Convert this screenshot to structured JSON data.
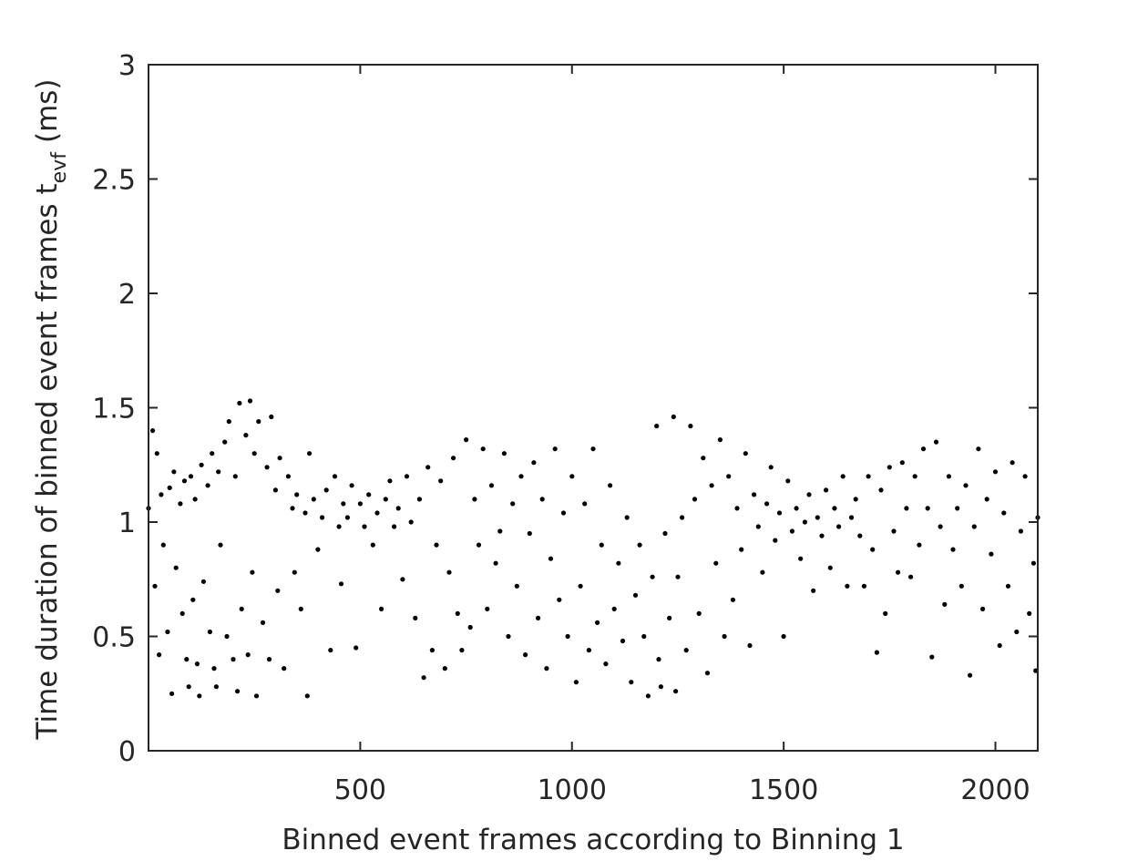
{
  "chart_data": {
    "type": "scatter",
    "title": "",
    "xlabel": "Binned event frames according to Binning 1",
    "ylabel": {
      "main": "Time duration of binned event frames t",
      "subscript": "evf",
      "unit": "(ms)"
    },
    "xlim": [
      0,
      2100
    ],
    "ylim": [
      0,
      3
    ],
    "x_ticks": [
      500,
      1000,
      1500,
      2000
    ],
    "y_ticks": [
      0,
      0.5,
      1,
      1.5,
      2,
      2.5,
      3
    ],
    "x_tick_labels": [
      "500",
      "1000",
      "1500",
      "2000"
    ],
    "y_tick_labels": [
      "0",
      "0.5",
      "1",
      "1.5",
      "2",
      "2.5",
      "3"
    ],
    "grid": false,
    "box": true,
    "marker_color": "#000000",
    "marker": "dot",
    "series": [
      {
        "points": [
          [
            0,
            1.06
          ],
          [
            10,
            1.4
          ],
          [
            15,
            0.72
          ],
          [
            20,
            1.3
          ],
          [
            25,
            0.42
          ],
          [
            30,
            1.12
          ],
          [
            35,
            0.9
          ],
          [
            45,
            0.52
          ],
          [
            50,
            1.15
          ],
          [
            55,
            0.25
          ],
          [
            60,
            1.22
          ],
          [
            65,
            0.8
          ],
          [
            75,
            1.08
          ],
          [
            80,
            0.6
          ],
          [
            85,
            1.18
          ],
          [
            90,
            0.4
          ],
          [
            95,
            0.28
          ],
          [
            100,
            1.2
          ],
          [
            105,
            0.66
          ],
          [
            110,
            1.1
          ],
          [
            115,
            0.38
          ],
          [
            120,
            0.24
          ],
          [
            125,
            1.25
          ],
          [
            130,
            0.74
          ],
          [
            140,
            1.16
          ],
          [
            145,
            0.52
          ],
          [
            150,
            1.3
          ],
          [
            155,
            0.36
          ],
          [
            160,
            0.28
          ],
          [
            165,
            1.22
          ],
          [
            170,
            0.9
          ],
          [
            180,
            1.35
          ],
          [
            185,
            0.5
          ],
          [
            190,
            1.44
          ],
          [
            200,
            0.4
          ],
          [
            205,
            1.2
          ],
          [
            210,
            0.26
          ],
          [
            215,
            1.52
          ],
          [
            220,
            0.62
          ],
          [
            230,
            1.38
          ],
          [
            235,
            0.42
          ],
          [
            240,
            1.53
          ],
          [
            245,
            0.78
          ],
          [
            250,
            1.3
          ],
          [
            255,
            0.24
          ],
          [
            260,
            1.44
          ],
          [
            270,
            0.56
          ],
          [
            280,
            1.24
          ],
          [
            285,
            0.4
          ],
          [
            290,
            1.46
          ],
          [
            300,
            1.14
          ],
          [
            305,
            0.7
          ],
          [
            310,
            1.28
          ],
          [
            320,
            0.36
          ],
          [
            330,
            1.2
          ],
          [
            340,
            1.06
          ],
          [
            345,
            0.78
          ],
          [
            350,
            1.12
          ],
          [
            360,
            0.62
          ],
          [
            370,
            1.04
          ],
          [
            375,
            0.24
          ],
          [
            380,
            1.3
          ],
          [
            390,
            1.1
          ],
          [
            400,
            0.88
          ],
          [
            410,
            1.02
          ],
          [
            420,
            1.14
          ],
          [
            430,
            0.44
          ],
          [
            440,
            1.2
          ],
          [
            450,
            0.98
          ],
          [
            455,
            0.73
          ],
          [
            460,
            1.08
          ],
          [
            470,
            1.02
          ],
          [
            480,
            1.16
          ],
          [
            490,
            0.45
          ],
          [
            500,
            1.08
          ],
          [
            510,
            0.98
          ],
          [
            520,
            1.12
          ],
          [
            530,
            0.9
          ],
          [
            540,
            1.04
          ],
          [
            550,
            0.62
          ],
          [
            560,
            1.1
          ],
          [
            570,
            1.18
          ],
          [
            580,
            0.98
          ],
          [
            590,
            1.06
          ],
          [
            600,
            0.75
          ],
          [
            610,
            1.2
          ],
          [
            620,
            1.0
          ],
          [
            630,
            0.58
          ],
          [
            640,
            1.1
          ],
          [
            650,
            0.32
          ],
          [
            660,
            1.24
          ],
          [
            670,
            0.44
          ],
          [
            680,
            0.9
          ],
          [
            690,
            1.18
          ],
          [
            700,
            0.36
          ],
          [
            710,
            0.78
          ],
          [
            720,
            1.28
          ],
          [
            730,
            0.6
          ],
          [
            740,
            0.44
          ],
          [
            750,
            1.36
          ],
          [
            760,
            0.54
          ],
          [
            770,
            1.1
          ],
          [
            780,
            0.9
          ],
          [
            790,
            1.32
          ],
          [
            800,
            0.62
          ],
          [
            810,
            1.16
          ],
          [
            820,
            0.82
          ],
          [
            830,
            0.96
          ],
          [
            840,
            1.3
          ],
          [
            850,
            0.5
          ],
          [
            860,
            1.08
          ],
          [
            870,
            0.72
          ],
          [
            880,
            1.2
          ],
          [
            890,
            0.42
          ],
          [
            900,
            0.95
          ],
          [
            910,
            1.26
          ],
          [
            920,
            0.58
          ],
          [
            930,
            1.1
          ],
          [
            940,
            0.36
          ],
          [
            950,
            0.84
          ],
          [
            960,
            1.32
          ],
          [
            970,
            0.66
          ],
          [
            980,
            1.04
          ],
          [
            990,
            0.5
          ],
          [
            1000,
            1.2
          ],
          [
            1010,
            0.3
          ],
          [
            1020,
            0.72
          ],
          [
            1030,
            1.08
          ],
          [
            1040,
            0.44
          ],
          [
            1050,
            1.32
          ],
          [
            1060,
            0.56
          ],
          [
            1070,
            0.9
          ],
          [
            1080,
            0.38
          ],
          [
            1090,
            1.16
          ],
          [
            1100,
            0.62
          ],
          [
            1110,
            0.82
          ],
          [
            1120,
            0.48
          ],
          [
            1130,
            1.02
          ],
          [
            1140,
            0.3
          ],
          [
            1150,
            0.68
          ],
          [
            1160,
            0.9
          ],
          [
            1170,
            0.5
          ],
          [
            1180,
            0.24
          ],
          [
            1190,
            0.76
          ],
          [
            1200,
            1.42
          ],
          [
            1205,
            0.4
          ],
          [
            1210,
            0.28
          ],
          [
            1220,
            0.95
          ],
          [
            1230,
            0.58
          ],
          [
            1240,
            1.46
          ],
          [
            1245,
            0.26
          ],
          [
            1250,
            0.76
          ],
          [
            1260,
            1.02
          ],
          [
            1270,
            0.44
          ],
          [
            1280,
            1.42
          ],
          [
            1290,
            1.1
          ],
          [
            1300,
            0.6
          ],
          [
            1310,
            1.28
          ],
          [
            1320,
            0.34
          ],
          [
            1330,
            1.16
          ],
          [
            1340,
            0.82
          ],
          [
            1350,
            1.36
          ],
          [
            1360,
            0.5
          ],
          [
            1370,
            1.2
          ],
          [
            1380,
            0.66
          ],
          [
            1390,
            1.06
          ],
          [
            1400,
            0.88
          ],
          [
            1410,
            1.3
          ],
          [
            1420,
            0.46
          ],
          [
            1430,
            1.12
          ],
          [
            1440,
            0.98
          ],
          [
            1450,
            0.78
          ],
          [
            1460,
            1.08
          ],
          [
            1470,
            1.24
          ],
          [
            1480,
            0.92
          ],
          [
            1490,
            1.04
          ],
          [
            1500,
            0.5
          ],
          [
            1510,
            1.18
          ],
          [
            1520,
            0.96
          ],
          [
            1530,
            1.06
          ],
          [
            1540,
            0.84
          ],
          [
            1550,
            1.0
          ],
          [
            1560,
            1.12
          ],
          [
            1570,
            0.7
          ],
          [
            1580,
            1.02
          ],
          [
            1590,
            0.94
          ],
          [
            1600,
            1.14
          ],
          [
            1610,
            0.8
          ],
          [
            1620,
            1.06
          ],
          [
            1630,
            0.98
          ],
          [
            1640,
            1.2
          ],
          [
            1650,
            0.72
          ],
          [
            1660,
            1.02
          ],
          [
            1670,
            1.1
          ],
          [
            1680,
            0.94
          ],
          [
            1690,
            0.72
          ],
          [
            1700,
            1.2
          ],
          [
            1710,
            0.88
          ],
          [
            1720,
            0.43
          ],
          [
            1730,
            1.14
          ],
          [
            1740,
            0.6
          ],
          [
            1750,
            1.24
          ],
          [
            1760,
            0.96
          ],
          [
            1770,
            0.78
          ],
          [
            1780,
            1.26
          ],
          [
            1790,
            1.06
          ],
          [
            1800,
            0.76
          ],
          [
            1810,
            1.2
          ],
          [
            1820,
            0.9
          ],
          [
            1830,
            1.32
          ],
          [
            1840,
            1.06
          ],
          [
            1850,
            0.41
          ],
          [
            1860,
            1.35
          ],
          [
            1870,
            0.98
          ],
          [
            1880,
            0.64
          ],
          [
            1890,
            1.2
          ],
          [
            1900,
            0.88
          ],
          [
            1910,
            1.06
          ],
          [
            1920,
            0.72
          ],
          [
            1930,
            1.16
          ],
          [
            1940,
            0.33
          ],
          [
            1950,
            0.98
          ],
          [
            1960,
            1.32
          ],
          [
            1970,
            0.62
          ],
          [
            1980,
            1.1
          ],
          [
            1990,
            0.86
          ],
          [
            2000,
            1.22
          ],
          [
            2010,
            0.46
          ],
          [
            2020,
            1.04
          ],
          [
            2030,
            0.72
          ],
          [
            2040,
            1.26
          ],
          [
            2050,
            0.52
          ],
          [
            2060,
            0.96
          ],
          [
            2070,
            1.2
          ],
          [
            2080,
            0.6
          ],
          [
            2090,
            0.82
          ],
          [
            2095,
            0.35
          ],
          [
            2100,
            1.02
          ]
        ]
      }
    ]
  }
}
